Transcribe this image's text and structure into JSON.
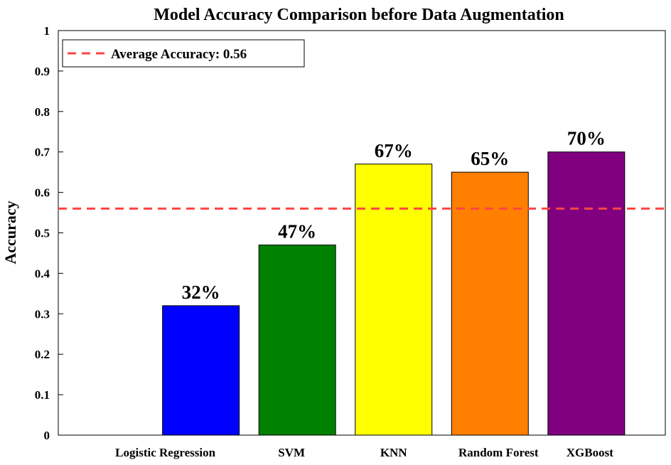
{
  "chart_data": {
    "type": "bar",
    "title": "Model Accuracy Comparison before Data Augmentation",
    "xlabel": "",
    "ylabel": "Accuracy",
    "ylim": [
      0,
      1
    ],
    "yticks": [
      "0",
      "0.1",
      "0.2",
      "0.3",
      "0.4",
      "0.5",
      "0.6",
      "0.7",
      "0.8",
      "0.9",
      "1"
    ],
    "categories": [
      "Logistic Regression",
      "SVM",
      "KNN",
      "Random Forest",
      "XGBoost"
    ],
    "values": [
      0.32,
      0.47,
      0.67,
      0.65,
      0.7
    ],
    "data_labels": [
      "32%",
      "47%",
      "67%",
      "65%",
      "70%"
    ],
    "colors": [
      "#0000ff",
      "#008000",
      "#ffff00",
      "#ff8000",
      "#800080"
    ],
    "average_line": {
      "value": 0.56,
      "color": "#ff4444",
      "style": "dashed"
    },
    "legend": {
      "entries": [
        "Average Accuracy: 0.56"
      ],
      "position": "top-left"
    },
    "grid": false
  }
}
